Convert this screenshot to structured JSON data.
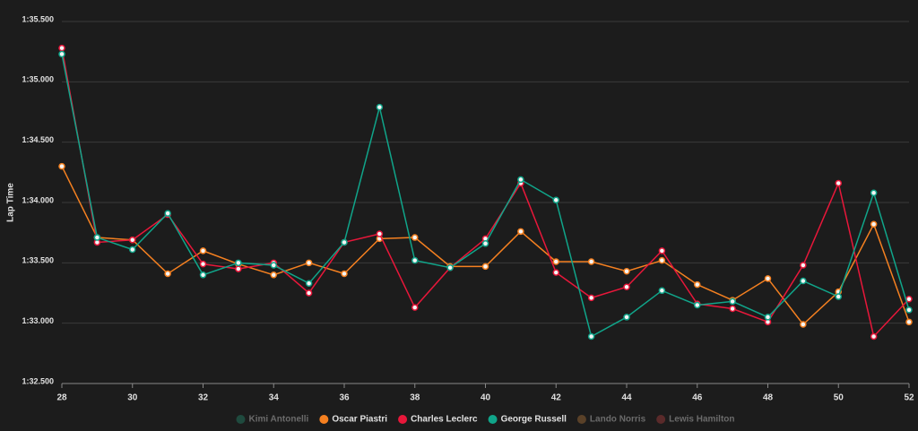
{
  "chart_data": {
    "type": "line",
    "ylabel": "Lap Time",
    "x": [
      28,
      29,
      30,
      31,
      32,
      33,
      34,
      35,
      36,
      37,
      38,
      39,
      40,
      41,
      42,
      43,
      44,
      45,
      46,
      47,
      48,
      49,
      50,
      51,
      52
    ],
    "xlim": [
      28,
      52
    ],
    "xticks": [
      28,
      30,
      32,
      34,
      36,
      38,
      40,
      42,
      44,
      46,
      48,
      50,
      52
    ],
    "ylim": [
      92.5,
      95.5
    ],
    "yticks": [
      {
        "value": 92.5,
        "label": "1:32.500"
      },
      {
        "value": 93,
        "label": "1:33.000"
      },
      {
        "value": 93.5,
        "label": "1:33.500"
      },
      {
        "value": 94,
        "label": "1:34.000"
      },
      {
        "value": 94.5,
        "label": "1:34.500"
      },
      {
        "value": 95,
        "label": "1:35.000"
      },
      {
        "value": 95.5,
        "label": "1:35.500"
      }
    ],
    "grid": true,
    "legend": "bottom",
    "series": [
      {
        "name": "Kimi Antonelli",
        "color": "#1f4a3e",
        "hidden": true,
        "values": [
          null,
          null,
          null,
          null,
          null,
          null,
          null,
          null,
          null,
          null,
          null,
          null,
          null,
          null,
          null,
          null,
          null,
          null,
          null,
          null,
          null,
          null,
          null,
          null,
          null
        ]
      },
      {
        "name": "Oscar Piastri",
        "color": "#f58020",
        "values": [
          94.3,
          93.71,
          93.69,
          93.41,
          93.6,
          93.49,
          93.4,
          93.5,
          93.41,
          93.7,
          93.71,
          93.47,
          93.47,
          93.76,
          93.51,
          93.51,
          93.43,
          93.52,
          93.32,
          93.19,
          93.37,
          92.99,
          93.26,
          93.82,
          93.01
        ]
      },
      {
        "name": "Charles Leclerc",
        "color": "#e8173a",
        "values": [
          95.28,
          93.67,
          93.69,
          93.9,
          93.49,
          93.45,
          93.5,
          93.25,
          93.67,
          93.74,
          93.13,
          93.46,
          93.7,
          94.16,
          93.42,
          93.21,
          93.3,
          93.6,
          93.16,
          93.12,
          93.01,
          93.48,
          94.16,
          92.89,
          93.2
        ]
      },
      {
        "name": "George Russell",
        "color": "#10a58a",
        "values": [
          95.23,
          93.71,
          93.61,
          93.91,
          93.4,
          93.5,
          93.48,
          93.33,
          93.67,
          94.79,
          93.52,
          93.46,
          93.66,
          94.19,
          94.02,
          92.89,
          93.05,
          93.27,
          93.15,
          93.18,
          93.05,
          93.35,
          93.22,
          94.08,
          93.11
        ]
      },
      {
        "name": "Lando Norris",
        "color": "#5a4128",
        "hidden": true,
        "values": [
          null,
          null,
          null,
          null,
          null,
          null,
          null,
          null,
          null,
          null,
          null,
          null,
          null,
          null,
          null,
          null,
          null,
          null,
          null,
          null,
          null,
          null,
          null,
          null,
          null
        ]
      },
      {
        "name": "Lewis Hamilton",
        "color": "#5a2a2a",
        "hidden": true,
        "values": [
          null,
          null,
          null,
          null,
          null,
          null,
          null,
          null,
          null,
          null,
          null,
          null,
          null,
          null,
          null,
          null,
          null,
          null,
          null,
          null,
          null,
          null,
          null,
          null,
          null
        ]
      }
    ]
  }
}
